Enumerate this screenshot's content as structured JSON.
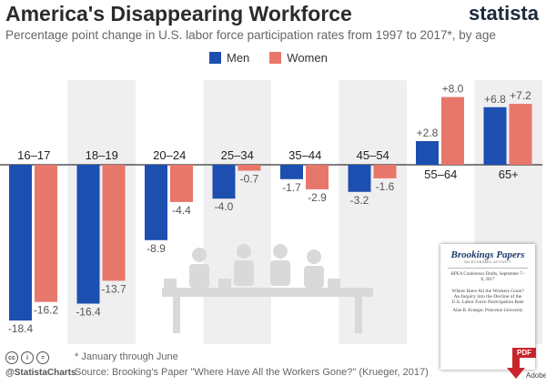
{
  "header": {
    "title": "America's Disappearing Workforce",
    "subtitle": "Percentage point change in U.S. labor force participation rates from 1997 to 2017*, by age",
    "brand": "statista"
  },
  "legend": {
    "men_label": "Men",
    "women_label": "Women"
  },
  "colors": {
    "men": "#1d4fb0",
    "women": "#e8776b",
    "band": "#efefef",
    "axis": "#333333"
  },
  "chart_data": {
    "type": "bar",
    "categories": [
      "16–17",
      "18–19",
      "20–24",
      "25–34",
      "35–44",
      "45–54",
      "55–64",
      "65+"
    ],
    "series": [
      {
        "name": "Men",
        "values": [
          -18.4,
          -16.4,
          -8.9,
          -4.0,
          -1.7,
          -3.2,
          2.8,
          6.8
        ]
      },
      {
        "name": "Women",
        "values": [
          -16.2,
          -13.7,
          -4.4,
          -0.7,
          -2.9,
          -1.6,
          8.0,
          7.2
        ]
      }
    ],
    "value_labels": {
      "Men": [
        "-18.4",
        "-16.4",
        "-8.9",
        "-4.0",
        "-1.7",
        "-3.2",
        "+2.8",
        "+6.8"
      ],
      "Women": [
        "-16.2",
        "-13.7",
        "-4.4",
        "-0.7",
        "-2.9",
        "-1.6",
        "+8.0",
        "+7.2"
      ]
    },
    "ylim": [
      -20,
      9
    ],
    "xlabel": "",
    "ylabel": "",
    "legend_position": "top",
    "alternating_bands": true
  },
  "footer": {
    "handle": "@StatistaCharts",
    "note": "* January through June",
    "source": "Source: Brooking's Paper \"Where Have All the Workers Gone?\" (Krueger, 2017)"
  },
  "document": {
    "title": "Brookings Papers",
    "subtitle": "ON ECONOMIC ACTIVITY",
    "meta": "BPEA Conference Drafts, September 7–8, 2017",
    "heading": "Where Have All the Workers Gone? An Inquiry into the Decline of the U.S. Labor Force Participation Rate",
    "author": "Alan B. Krueger, Princeton University",
    "badge": "PDF",
    "brand": "Adobe"
  }
}
